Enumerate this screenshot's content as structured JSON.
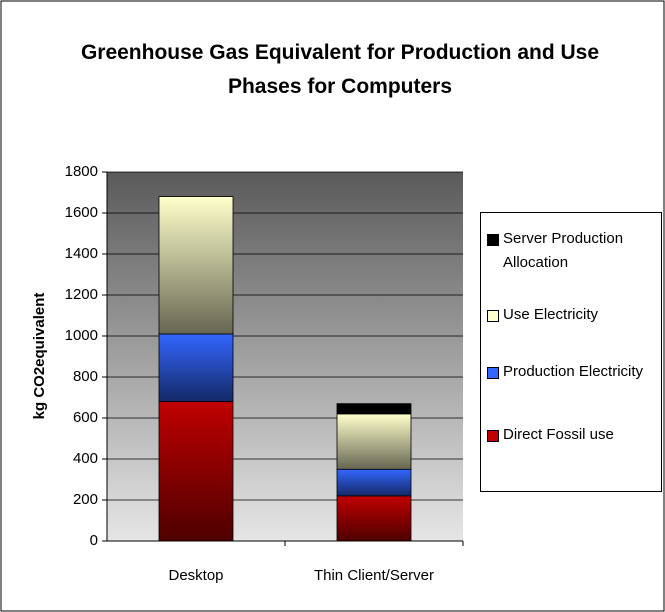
{
  "chart_data": {
    "type": "stacked_bar",
    "title": "Greenhouse Gas Equivalent for Production and Use Phases for Computers",
    "y_label": "kg CO2equivalent",
    "categories": [
      "Desktop",
      "Thin Client/Server"
    ],
    "series": [
      {
        "name": "Direct Fossil use",
        "color": "#c00000",
        "values": [
          680,
          220
        ]
      },
      {
        "name": "Production Electricity",
        "color": "#3366ff",
        "values": [
          330,
          130
        ]
      },
      {
        "name": "Use Electricity",
        "color": "#ffffcc",
        "values": [
          670,
          270
        ]
      },
      {
        "name": "Server Production Allocation",
        "color": "#000000",
        "values": [
          0,
          50
        ]
      }
    ],
    "ylim": [
      0,
      1800
    ],
    "yticks": [
      0,
      200,
      400,
      600,
      800,
      1000,
      1200,
      1400,
      1600,
      1800
    ],
    "grid": true,
    "legend": "right"
  }
}
